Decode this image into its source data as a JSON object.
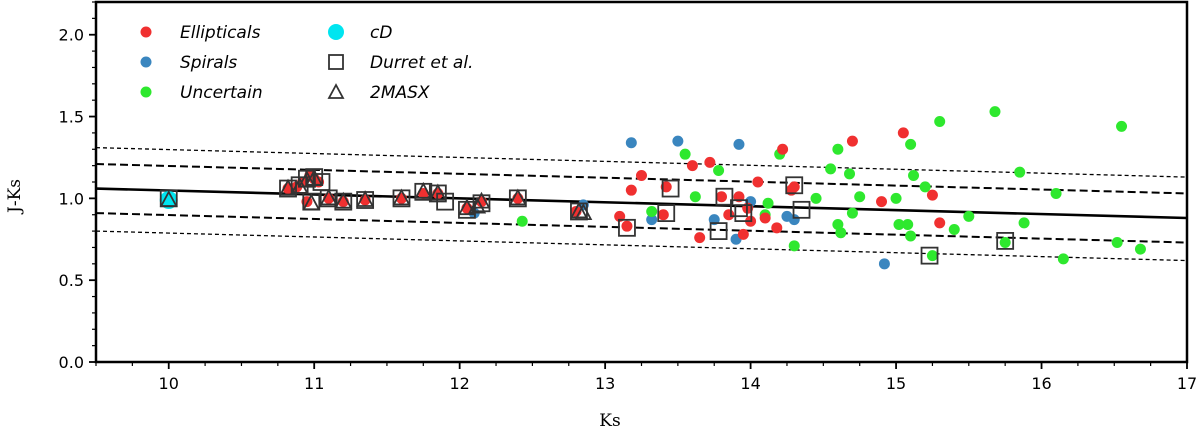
{
  "chart_data": {
    "type": "scatter",
    "xlabel": "Ks",
    "ylabel": "J-Ks",
    "xlim": [
      9.5,
      17
    ],
    "ylim": [
      0,
      2.2
    ],
    "x_ticks": [
      10,
      11,
      12,
      13,
      14,
      15,
      16,
      17
    ],
    "y_ticks": [
      0.0,
      0.5,
      1.0,
      1.5,
      2.0
    ],
    "x_tick_labels": [
      "10",
      "11",
      "12",
      "13",
      "14",
      "15",
      "16",
      "17"
    ],
    "y_tick_labels": [
      "0.0",
      "0.5",
      "1.0",
      "1.5",
      "2.0"
    ],
    "grid": false,
    "legend_position": "top-left",
    "legend": [
      {
        "label": "Ellipticals",
        "marker": "circle",
        "color": "#f03030"
      },
      {
        "label": "Spirals",
        "marker": "circle",
        "color": "#3a86bf"
      },
      {
        "label": "Uncertain",
        "marker": "circle",
        "color": "#2ee82e"
      },
      {
        "label": "cD",
        "marker": "circle",
        "color": "#00e5f0"
      },
      {
        "label": "Durret et al.",
        "marker": "square",
        "color": "#333333"
      },
      {
        "label": "2MASX",
        "marker": "triangle",
        "color": "#333333"
      }
    ],
    "lines": [
      {
        "kind": "solid",
        "x": [
          9.5,
          17
        ],
        "y": [
          1.06,
          0.88
        ]
      },
      {
        "kind": "dashed",
        "x": [
          9.5,
          17
        ],
        "y": [
          1.21,
          1.03
        ]
      },
      {
        "kind": "dashed",
        "x": [
          9.5,
          17
        ],
        "y": [
          0.91,
          0.73
        ]
      },
      {
        "kind": "dotted",
        "x": [
          9.5,
          17
        ],
        "y": [
          1.31,
          1.13
        ]
      },
      {
        "kind": "dotted",
        "x": [
          9.5,
          17
        ],
        "y": [
          0.8,
          0.62
        ]
      }
    ],
    "series": [
      {
        "name": "Ellipticals",
        "color": "#f03030",
        "points": [
          [
            10.82,
            1.06
          ],
          [
            10.88,
            1.07
          ],
          [
            10.92,
            1.1
          ],
          [
            10.95,
            0.98
          ],
          [
            10.97,
            1.14
          ],
          [
            11.0,
            1.12
          ],
          [
            11.03,
            1.1
          ],
          [
            11.1,
            1.0
          ],
          [
            11.2,
            0.98
          ],
          [
            11.35,
            0.99
          ],
          [
            11.6,
            1.0
          ],
          [
            11.75,
            1.03
          ],
          [
            11.85,
            1.03
          ],
          [
            12.05,
            0.94
          ],
          [
            12.15,
            0.98
          ],
          [
            12.4,
            1.0
          ],
          [
            12.8,
            0.92
          ],
          [
            13.1,
            0.89
          ],
          [
            13.15,
            0.83
          ],
          [
            13.18,
            1.05
          ],
          [
            13.25,
            1.14
          ],
          [
            13.4,
            0.9
          ],
          [
            13.42,
            1.07
          ],
          [
            13.6,
            1.2
          ],
          [
            13.65,
            0.76
          ],
          [
            13.72,
            1.22
          ],
          [
            13.8,
            1.01
          ],
          [
            13.85,
            0.9
          ],
          [
            13.92,
            1.01
          ],
          [
            13.95,
            0.78
          ],
          [
            13.98,
            0.94
          ],
          [
            14.0,
            0.86
          ],
          [
            14.05,
            1.1
          ],
          [
            14.1,
            0.88
          ],
          [
            14.18,
            0.82
          ],
          [
            14.22,
            1.3
          ],
          [
            14.28,
            1.05
          ],
          [
            14.3,
            1.07
          ],
          [
            14.7,
            1.35
          ],
          [
            14.9,
            0.98
          ],
          [
            15.05,
            1.4
          ],
          [
            15.25,
            1.02
          ],
          [
            15.3,
            0.85
          ]
        ]
      },
      {
        "name": "Spirals",
        "color": "#3a86bf",
        "points": [
          [
            12.1,
            0.91
          ],
          [
            12.85,
            0.96
          ],
          [
            13.18,
            1.34
          ],
          [
            13.32,
            0.87
          ],
          [
            13.5,
            1.35
          ],
          [
            13.75,
            0.87
          ],
          [
            13.9,
            0.75
          ],
          [
            13.92,
            1.33
          ],
          [
            14.0,
            0.98
          ],
          [
            14.25,
            0.89
          ],
          [
            14.3,
            0.87
          ],
          [
            14.92,
            0.6
          ]
        ]
      },
      {
        "name": "Uncertain",
        "color": "#2ee82e",
        "points": [
          [
            12.43,
            0.86
          ],
          [
            13.32,
            0.92
          ],
          [
            13.55,
            1.27
          ],
          [
            13.62,
            1.01
          ],
          [
            13.78,
            1.17
          ],
          [
            14.1,
            0.9
          ],
          [
            14.12,
            0.97
          ],
          [
            14.2,
            1.27
          ],
          [
            14.3,
            0.71
          ],
          [
            14.45,
            1.0
          ],
          [
            14.55,
            1.18
          ],
          [
            14.6,
            0.84
          ],
          [
            14.6,
            1.3
          ],
          [
            14.62,
            0.79
          ],
          [
            14.68,
            1.15
          ],
          [
            14.7,
            0.91
          ],
          [
            14.75,
            1.01
          ],
          [
            15.0,
            1.0
          ],
          [
            15.02,
            0.84
          ],
          [
            15.08,
            0.84
          ],
          [
            15.1,
            0.77
          ],
          [
            15.1,
            1.33
          ],
          [
            15.12,
            1.14
          ],
          [
            15.2,
            1.07
          ],
          [
            15.25,
            0.65
          ],
          [
            15.3,
            1.47
          ],
          [
            15.4,
            0.81
          ],
          [
            15.5,
            0.89
          ],
          [
            15.68,
            1.53
          ],
          [
            15.75,
            0.73
          ],
          [
            15.85,
            1.16
          ],
          [
            15.88,
            0.85
          ],
          [
            16.1,
            1.03
          ],
          [
            16.15,
            0.63
          ],
          [
            16.52,
            0.73
          ],
          [
            16.55,
            1.44
          ],
          [
            16.68,
            0.69
          ]
        ]
      },
      {
        "name": "cD",
        "color": "#00e5f0",
        "points": [
          [
            10.0,
            0.99
          ]
        ]
      },
      {
        "name": "Durret et al.",
        "color": "#333333",
        "points": [
          [
            10.0,
            1.0
          ],
          [
            10.82,
            1.06
          ],
          [
            10.9,
            1.08
          ],
          [
            10.95,
            1.12
          ],
          [
            10.98,
            0.98
          ],
          [
            11.0,
            1.13
          ],
          [
            11.05,
            1.1
          ],
          [
            11.1,
            1.0
          ],
          [
            11.2,
            0.98
          ],
          [
            11.35,
            0.99
          ],
          [
            11.6,
            1.0
          ],
          [
            11.75,
            1.04
          ],
          [
            11.85,
            1.03
          ],
          [
            11.9,
            0.98
          ],
          [
            12.05,
            0.93
          ],
          [
            12.15,
            0.97
          ],
          [
            12.4,
            1.0
          ],
          [
            12.82,
            0.92
          ],
          [
            13.15,
            0.82
          ],
          [
            13.42,
            0.91
          ],
          [
            13.45,
            1.06
          ],
          [
            13.78,
            0.8
          ],
          [
            13.82,
            1.01
          ],
          [
            13.92,
            0.94
          ],
          [
            13.95,
            0.91
          ],
          [
            14.3,
            1.08
          ],
          [
            14.35,
            0.93
          ],
          [
            15.23,
            0.65
          ],
          [
            15.75,
            0.74
          ]
        ]
      },
      {
        "name": "2MASX",
        "color": "#333333",
        "points": [
          [
            10.0,
            0.99
          ],
          [
            10.82,
            1.06
          ],
          [
            10.9,
            1.07
          ],
          [
            10.95,
            1.11
          ],
          [
            10.98,
            0.97
          ],
          [
            11.0,
            1.12
          ],
          [
            11.1,
            1.0
          ],
          [
            11.2,
            0.98
          ],
          [
            11.35,
            0.99
          ],
          [
            11.6,
            1.0
          ],
          [
            11.75,
            1.04
          ],
          [
            11.85,
            1.03
          ],
          [
            12.05,
            0.94
          ],
          [
            12.12,
            0.95
          ],
          [
            12.15,
            0.98
          ],
          [
            12.4,
            1.0
          ],
          [
            12.82,
            0.92
          ],
          [
            12.85,
            0.91
          ]
        ]
      }
    ]
  }
}
